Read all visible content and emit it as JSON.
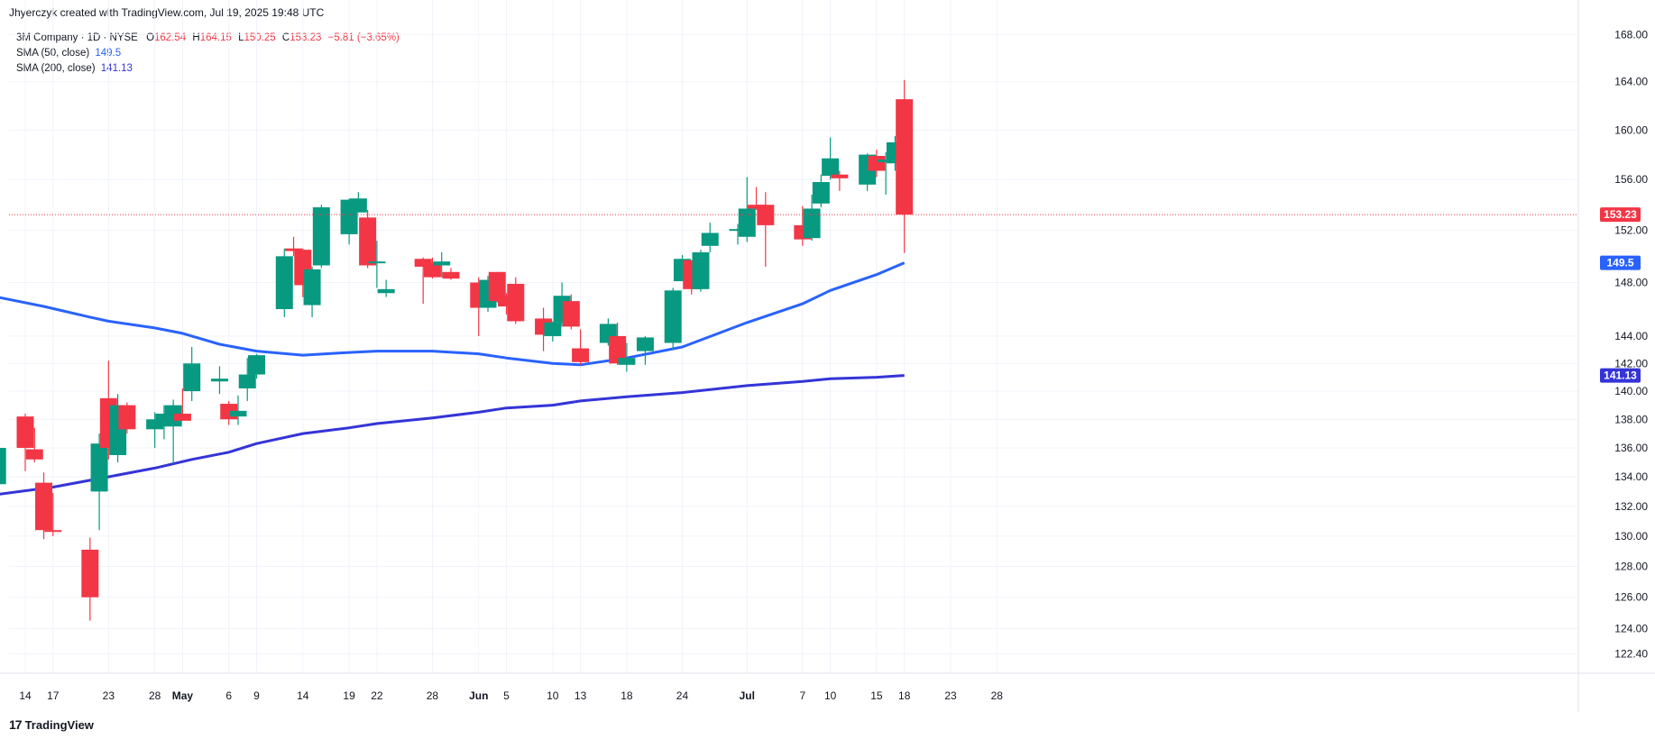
{
  "header": {
    "text": "Jhyerczyk created with TradingView.com, Jul 19, 2025 19:48 UTC"
  },
  "legend": {
    "symbol": "3M Company · 1D · NYSE",
    "ohlc": {
      "o_label": "O",
      "o": "162.54",
      "h_label": "H",
      "h": "164.15",
      "l_label": "L",
      "l": "150.25",
      "c_label": "C",
      "c": "153.23",
      "change": "−5.81 (−3.65%)"
    },
    "sma50": {
      "label": "SMA (50, close)",
      "value": "149.5"
    },
    "sma200": {
      "label": "SMA (200, close)",
      "value": "141.13"
    }
  },
  "branding": {
    "logo": "17",
    "name": "TradingView"
  },
  "colors": {
    "up": "#089981",
    "down": "#f23645",
    "sma50": "#2962ff",
    "sma200": "#3434d8",
    "grid": "#f0f3fa",
    "axis_text": "#131722"
  },
  "chart_data": {
    "type": "candlestick",
    "y_scale": "log",
    "ylim": [
      121.2,
      171.0
    ],
    "y_ticks": [
      "122.40",
      "124.00",
      "126.00",
      "128.00",
      "130.00",
      "132.00",
      "134.00",
      "136.00",
      "138.00",
      "140.00",
      "142.00",
      "144.00",
      "148.00",
      "152.00",
      "156.00",
      "160.00",
      "164.00",
      "168.00"
    ],
    "x_tick_labels": [
      "14",
      "17",
      "23",
      "28",
      "May",
      "6",
      "9",
      "14",
      "19",
      "22",
      "28",
      "Jun",
      "5",
      "10",
      "13",
      "18",
      "24",
      "Jul",
      "7",
      "10",
      "15",
      "18",
      "23",
      "28"
    ],
    "x_tick_dates": [
      "2025-04-14",
      "2025-04-17",
      "2025-04-23",
      "2025-04-28",
      "2025-05-01",
      "2025-05-06",
      "2025-05-09",
      "2025-05-14",
      "2025-05-19",
      "2025-05-22",
      "2025-05-28",
      "2025-06-02",
      "2025-06-05",
      "2025-06-10",
      "2025-06-13",
      "2025-06-18",
      "2025-06-24",
      "2025-07-01",
      "2025-07-07",
      "2025-07-10",
      "2025-07-15",
      "2025-07-18",
      "2025-07-23",
      "2025-07-28"
    ],
    "candles": [
      {
        "d": "2025-04-11",
        "o": 133.5,
        "h": 136.5,
        "l": 133.0,
        "c": 136.0
      },
      {
        "d": "2025-04-14",
        "o": 138.2,
        "h": 138.4,
        "l": 134.4,
        "c": 136.0
      },
      {
        "d": "2025-04-15",
        "o": 135.9,
        "h": 137.4,
        "l": 135.0,
        "c": 135.2
      },
      {
        "d": "2025-04-16",
        "o": 133.6,
        "h": 134.3,
        "l": 129.8,
        "c": 130.4
      },
      {
        "d": "2025-04-17",
        "o": 130.4,
        "h": 132.9,
        "l": 130.0,
        "c": 130.3
      },
      {
        "d": "2025-04-21",
        "o": 129.1,
        "h": 129.9,
        "l": 124.5,
        "c": 126.0
      },
      {
        "d": "2025-04-22",
        "o": 133.0,
        "h": 137.0,
        "l": 130.4,
        "c": 136.3
      },
      {
        "d": "2025-04-23",
        "o": 139.5,
        "h": 142.2,
        "l": 135.2,
        "c": 136.0
      },
      {
        "d": "2025-04-24",
        "o": 135.5,
        "h": 139.8,
        "l": 135.0,
        "c": 139.0
      },
      {
        "d": "2025-04-25",
        "o": 139.0,
        "h": 139.2,
        "l": 137.0,
        "c": 137.3
      },
      {
        "d": "2025-04-28",
        "o": 137.3,
        "h": 138.5,
        "l": 136.0,
        "c": 138.0
      },
      {
        "d": "2025-04-29",
        "o": 137.5,
        "h": 139.0,
        "l": 136.6,
        "c": 138.4
      },
      {
        "d": "2025-04-30",
        "o": 137.5,
        "h": 139.4,
        "l": 134.9,
        "c": 139.0
      },
      {
        "d": "2025-05-01",
        "o": 138.4,
        "h": 140.2,
        "l": 137.9,
        "c": 137.9
      },
      {
        "d": "2025-05-02",
        "o": 140.0,
        "h": 143.2,
        "l": 139.3,
        "c": 142.0
      },
      {
        "d": "2025-05-05",
        "o": 140.7,
        "h": 141.8,
        "l": 139.8,
        "c": 140.9
      },
      {
        "d": "2025-05-06",
        "o": 139.1,
        "h": 139.3,
        "l": 137.6,
        "c": 138.0
      },
      {
        "d": "2025-05-07",
        "o": 138.2,
        "h": 139.7,
        "l": 137.6,
        "c": 138.6
      },
      {
        "d": "2025-05-08",
        "o": 140.2,
        "h": 142.4,
        "l": 139.3,
        "c": 141.2
      },
      {
        "d": "2025-05-09",
        "o": 141.2,
        "h": 142.7,
        "l": 140.9,
        "c": 142.6
      },
      {
        "d": "2025-05-12",
        "o": 146.0,
        "h": 150.6,
        "l": 145.4,
        "c": 150.0
      },
      {
        "d": "2025-05-13",
        "o": 150.6,
        "h": 151.5,
        "l": 150.0,
        "c": 150.4
      },
      {
        "d": "2025-05-14",
        "o": 150.5,
        "h": 150.6,
        "l": 146.9,
        "c": 147.8
      },
      {
        "d": "2025-05-15",
        "o": 146.3,
        "h": 149.2,
        "l": 145.4,
        "c": 149.0
      },
      {
        "d": "2025-05-16",
        "o": 149.3,
        "h": 154.0,
        "l": 149.1,
        "c": 153.8
      },
      {
        "d": "2025-05-19",
        "o": 151.7,
        "h": 154.5,
        "l": 150.9,
        "c": 154.4
      },
      {
        "d": "2025-05-20",
        "o": 153.4,
        "h": 155.0,
        "l": 153.4,
        "c": 154.5
      },
      {
        "d": "2025-05-21",
        "o": 153.0,
        "h": 153.6,
        "l": 149.1,
        "c": 149.3
      },
      {
        "d": "2025-05-22",
        "o": 149.5,
        "h": 151.2,
        "l": 147.6,
        "c": 149.6
      },
      {
        "d": "2025-05-23",
        "o": 147.2,
        "h": 148.2,
        "l": 146.9,
        "c": 147.5
      },
      {
        "d": "2025-05-27",
        "o": 149.8,
        "h": 149.9,
        "l": 146.4,
        "c": 149.2
      },
      {
        "d": "2025-05-28",
        "o": 149.5,
        "h": 149.9,
        "l": 148.3,
        "c": 148.4
      },
      {
        "d": "2025-05-29",
        "o": 149.3,
        "h": 150.3,
        "l": 148.4,
        "c": 149.6
      },
      {
        "d": "2025-05-30",
        "o": 148.8,
        "h": 149.1,
        "l": 148.2,
        "c": 148.3
      },
      {
        "d": "2025-06-02",
        "o": 148.0,
        "h": 148.4,
        "l": 144.0,
        "c": 146.1
      },
      {
        "d": "2025-06-03",
        "o": 146.1,
        "h": 148.5,
        "l": 145.8,
        "c": 148.2
      },
      {
        "d": "2025-06-04",
        "o": 148.8,
        "h": 148.8,
        "l": 146.5,
        "c": 146.6
      },
      {
        "d": "2025-06-05",
        "o": 147.0,
        "h": 147.2,
        "l": 145.6,
        "c": 146.2
      },
      {
        "d": "2025-06-06",
        "o": 147.9,
        "h": 148.4,
        "l": 144.9,
        "c": 145.1
      },
      {
        "d": "2025-06-09",
        "o": 145.3,
        "h": 146.1,
        "l": 142.9,
        "c": 144.1
      },
      {
        "d": "2025-06-10",
        "o": 144.0,
        "h": 145.1,
        "l": 143.6,
        "c": 145.0
      },
      {
        "d": "2025-06-11",
        "o": 145.0,
        "h": 148.0,
        "l": 144.7,
        "c": 147.0
      },
      {
        "d": "2025-06-12",
        "o": 146.6,
        "h": 147.1,
        "l": 144.5,
        "c": 144.7
      },
      {
        "d": "2025-06-13",
        "o": 143.1,
        "h": 144.5,
        "l": 141.9,
        "c": 142.1
      },
      {
        "d": "2025-06-16",
        "o": 143.5,
        "h": 145.3,
        "l": 143.3,
        "c": 144.9
      },
      {
        "d": "2025-06-17",
        "o": 144.0,
        "h": 145.0,
        "l": 141.9,
        "c": 142.0
      },
      {
        "d": "2025-06-18",
        "o": 141.9,
        "h": 143.5,
        "l": 141.4,
        "c": 142.4
      },
      {
        "d": "2025-06-20",
        "o": 142.9,
        "h": 144.0,
        "l": 141.9,
        "c": 143.9
      },
      {
        "d": "2025-06-23",
        "o": 143.5,
        "h": 147.6,
        "l": 143.0,
        "c": 147.4
      },
      {
        "d": "2025-06-24",
        "o": 148.1,
        "h": 150.1,
        "l": 148.1,
        "c": 149.8
      },
      {
        "d": "2025-06-25",
        "o": 149.7,
        "h": 149.7,
        "l": 147.1,
        "c": 147.5
      },
      {
        "d": "2025-06-26",
        "o": 147.5,
        "h": 150.5,
        "l": 147.3,
        "c": 150.3
      },
      {
        "d": "2025-06-27",
        "o": 150.8,
        "h": 152.6,
        "l": 150.3,
        "c": 151.8
      },
      {
        "d": "2025-06-30",
        "o": 152.1,
        "h": 152.5,
        "l": 150.9,
        "c": 152.1
      },
      {
        "d": "2025-07-01",
        "o": 151.5,
        "h": 156.2,
        "l": 151.1,
        "c": 153.7
      },
      {
        "d": "2025-07-02",
        "o": 154.0,
        "h": 155.4,
        "l": 153.6,
        "c": 153.7
      },
      {
        "d": "2025-07-03",
        "o": 154.0,
        "h": 155.0,
        "l": 149.2,
        "c": 152.4
      },
      {
        "d": "2025-07-07",
        "o": 152.4,
        "h": 153.9,
        "l": 150.8,
        "c": 151.3
      },
      {
        "d": "2025-07-08",
        "o": 151.4,
        "h": 154.8,
        "l": 151.2,
        "c": 153.7
      },
      {
        "d": "2025-07-09",
        "o": 154.1,
        "h": 156.4,
        "l": 153.8,
        "c": 155.8
      },
      {
        "d": "2025-07-10",
        "o": 156.3,
        "h": 159.4,
        "l": 156.0,
        "c": 157.7
      },
      {
        "d": "2025-07-11",
        "o": 156.4,
        "h": 156.7,
        "l": 155.1,
        "c": 156.1
      },
      {
        "d": "2025-07-14",
        "o": 155.6,
        "h": 158.1,
        "l": 155.1,
        "c": 158.0
      },
      {
        "d": "2025-07-15",
        "o": 157.9,
        "h": 158.4,
        "l": 156.2,
        "c": 156.7
      },
      {
        "d": "2025-07-16",
        "o": 157.4,
        "h": 158.2,
        "l": 154.8,
        "c": 157.6
      },
      {
        "d": "2025-07-17",
        "o": 157.3,
        "h": 159.5,
        "l": 156.7,
        "c": 159.0
      },
      {
        "d": "2025-07-18",
        "o": 162.54,
        "h": 164.15,
        "l": 150.25,
        "c": 153.23
      }
    ],
    "series": [
      {
        "name": "SMA (50, close)",
        "color": "#2962ff",
        "points": [
          [
            "2025-04-11",
            146.9
          ],
          [
            "2025-04-16",
            146.2
          ],
          [
            "2025-04-21",
            145.4
          ],
          [
            "2025-04-23",
            145.1
          ],
          [
            "2025-04-28",
            144.6
          ],
          [
            "2025-05-01",
            144.2
          ],
          [
            "2025-05-05",
            143.4
          ],
          [
            "2025-05-09",
            142.9
          ],
          [
            "2025-05-14",
            142.6
          ],
          [
            "2025-05-19",
            142.8
          ],
          [
            "2025-05-22",
            142.9
          ],
          [
            "2025-05-28",
            142.9
          ],
          [
            "2025-06-02",
            142.7
          ],
          [
            "2025-06-05",
            142.4
          ],
          [
            "2025-06-10",
            142.0
          ],
          [
            "2025-06-13",
            141.9
          ],
          [
            "2025-06-18",
            142.4
          ],
          [
            "2025-06-24",
            143.2
          ],
          [
            "2025-07-01",
            145.0
          ],
          [
            "2025-07-07",
            146.4
          ],
          [
            "2025-07-10",
            147.4
          ],
          [
            "2025-07-15",
            148.6
          ],
          [
            "2025-07-18",
            149.5
          ]
        ]
      },
      {
        "name": "SMA (200, close)",
        "color": "#3434d8",
        "points": [
          [
            "2025-04-11",
            132.8
          ],
          [
            "2025-04-17",
            133.3
          ],
          [
            "2025-04-23",
            134.0
          ],
          [
            "2025-04-28",
            134.6
          ],
          [
            "2025-05-02",
            135.2
          ],
          [
            "2025-05-06",
            135.7
          ],
          [
            "2025-05-09",
            136.3
          ],
          [
            "2025-05-14",
            137.0
          ],
          [
            "2025-05-19",
            137.4
          ],
          [
            "2025-05-22",
            137.7
          ],
          [
            "2025-05-28",
            138.1
          ],
          [
            "2025-06-02",
            138.5
          ],
          [
            "2025-06-05",
            138.8
          ],
          [
            "2025-06-10",
            139.0
          ],
          [
            "2025-06-13",
            139.3
          ],
          [
            "2025-06-18",
            139.6
          ],
          [
            "2025-06-24",
            139.9
          ],
          [
            "2025-07-01",
            140.4
          ],
          [
            "2025-07-07",
            140.7
          ],
          [
            "2025-07-10",
            140.9
          ],
          [
            "2025-07-15",
            141.0
          ],
          [
            "2025-07-18",
            141.13
          ]
        ]
      }
    ],
    "price_line": {
      "value": 153.23,
      "label": "153.23",
      "color": "#f23645"
    },
    "axis_badges": [
      {
        "value": 153.23,
        "label": "153.23",
        "color": "#f23645"
      },
      {
        "value": 149.5,
        "label": "149.5",
        "color": "#2962ff"
      },
      {
        "value": 141.13,
        "label": "141.13",
        "color": "#3434d8"
      }
    ],
    "grid": true
  }
}
